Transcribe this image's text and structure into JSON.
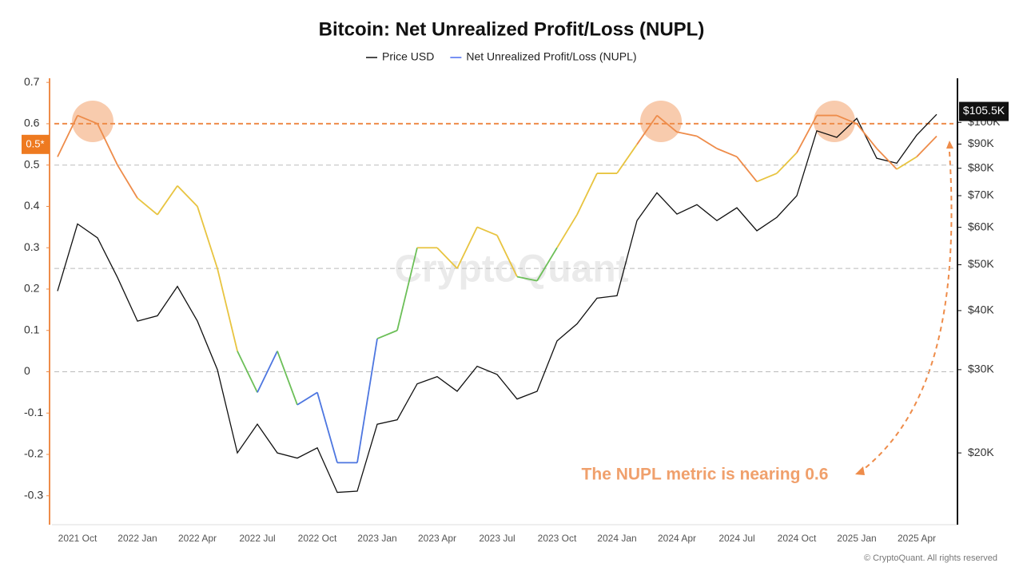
{
  "chart_data": {
    "type": "line",
    "title": "Bitcoin: Net Unrealized Profit/Loss (NUPL)",
    "categories": [
      null,
      "2021 Oct",
      null,
      null,
      "2022 Jan",
      null,
      null,
      "2022 Apr",
      null,
      null,
      "2022 Jul",
      null,
      null,
      "2022 Oct",
      null,
      null,
      "2023 Jan",
      null,
      null,
      "2023 Apr",
      null,
      null,
      "2023 Jul",
      null,
      null,
      "2023 Oct",
      null,
      null,
      "2024 Jan",
      null,
      null,
      "2024 Apr",
      null,
      null,
      "2024 Jul",
      null,
      null,
      "2024 Oct",
      null,
      null,
      "2025 Jan",
      null,
      null,
      "2025 Apr",
      null
    ],
    "series": [
      {
        "name": "Price USD",
        "color": "#111111",
        "axis": "y2",
        "values": [
          44000,
          61000,
          57000,
          47000,
          38000,
          39000,
          45000,
          38000,
          30000,
          20000,
          23000,
          20000,
          19500,
          20500,
          16500,
          16600,
          23000,
          23500,
          28000,
          29000,
          27000,
          30500,
          29300,
          26000,
          27000,
          34500,
          37500,
          42500,
          43000,
          62000,
          71000,
          64000,
          67000,
          62000,
          66000,
          59000,
          63000,
          70000,
          96000,
          93000,
          102000,
          84000,
          82000,
          94000,
          104000
        ]
      },
      {
        "name": "Net Unrealized Profit/Loss (NUPL)",
        "color": "#4a6cf0",
        "values": [
          0.52,
          0.62,
          0.6,
          0.5,
          0.42,
          0.38,
          0.45,
          0.4,
          0.25,
          0.05,
          -0.05,
          0.05,
          -0.08,
          -0.05,
          -0.22,
          -0.22,
          0.08,
          0.1,
          0.3,
          0.3,
          0.25,
          0.35,
          0.33,
          0.23,
          0.22,
          0.3,
          0.38,
          0.48,
          0.48,
          0.55,
          0.62,
          0.58,
          0.57,
          0.54,
          0.52,
          0.46,
          0.48,
          0.53,
          0.62,
          0.62,
          0.6,
          0.54,
          0.49,
          0.52,
          0.57
        ]
      }
    ],
    "nupl_zones": [
      {
        "from": 0.5,
        "color": "#ee8c4a"
      },
      {
        "from": 0.25,
        "color": "#e8c440"
      },
      {
        "from": 0,
        "color": "#6cbf58"
      },
      {
        "from": null,
        "color": "#4d76e0"
      }
    ],
    "reference_lines": [
      {
        "value": 0.6,
        "color": "#ee8c4a"
      },
      {
        "value": 0.5,
        "color": "#bbbbbb"
      },
      {
        "value": 0.25,
        "color": "#bbbbbb"
      },
      {
        "value": 0,
        "color": "#bbbbbb"
      }
    ],
    "ylim": [
      -0.37,
      0.71
    ],
    "yticks": [
      -0.3,
      -0.2,
      -0.1,
      0,
      0.1,
      0.2,
      0.3,
      0.4,
      0.5,
      0.6,
      0.7
    ],
    "y2lim": [
      14100,
      124000
    ],
    "y2_log": true,
    "y2ticks": [
      {
        "value": 20000,
        "label": "$20K"
      },
      {
        "value": 30000,
        "label": "$30K"
      },
      {
        "value": 40000,
        "label": "$40K"
      },
      {
        "value": 50000,
        "label": "$50K"
      },
      {
        "value": 60000,
        "label": "$60K"
      },
      {
        "value": 70000,
        "label": "$70K"
      },
      {
        "value": 80000,
        "label": "$80K"
      },
      {
        "value": 90000,
        "label": "$90K"
      },
      {
        "value": 100000,
        "label": "$100K"
      }
    ],
    "current_price": {
      "value": 105500,
      "label": "$105.5K"
    },
    "current_nupl": {
      "value": 0.55,
      "label": "0.5*"
    },
    "annotation": "The NUPL metric is nearing 0.6",
    "watermark": "CryptoQuant",
    "copyright": "© CryptoQuant. All rights reserved"
  }
}
